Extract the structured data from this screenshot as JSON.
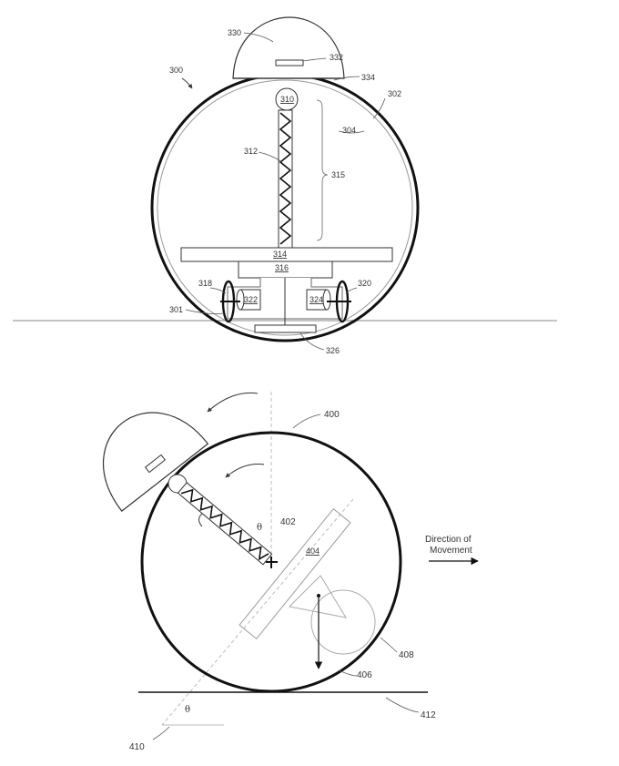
{
  "figure_top": {
    "ref_numerals": {
      "r300": "300",
      "r301": "301",
      "r302": "302",
      "r304": "304",
      "r310": "310",
      "r312": "312",
      "r314": "314",
      "r315": "315",
      "r316": "316",
      "r318": "318",
      "r320": "320",
      "r322": "322",
      "r324": "324",
      "r326": "326",
      "r330": "330",
      "r332": "332",
      "r334": "334"
    }
  },
  "figure_bottom": {
    "ref_numerals": {
      "r400": "400",
      "r402": "402",
      "r404": "404",
      "r406": "406",
      "r408": "408",
      "r410": "410",
      "r412": "412"
    },
    "theta_symbol": "θ",
    "direction_label_line1": "Direction of",
    "direction_label_line2": "Movement"
  },
  "colors": {
    "ink": "#111111",
    "label": "#333333",
    "ghost": "#aaaaaa",
    "background": "#ffffff"
  }
}
